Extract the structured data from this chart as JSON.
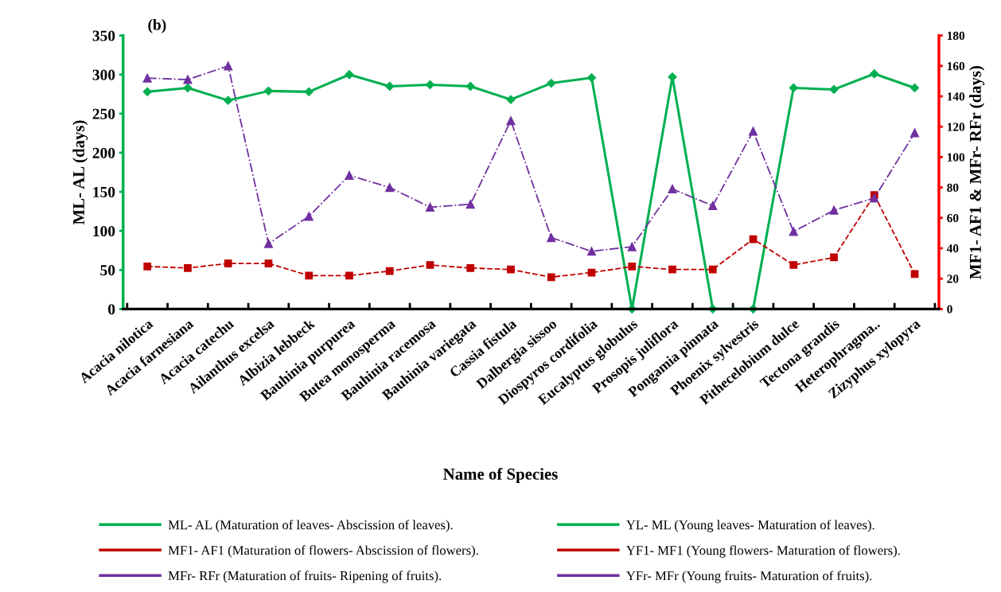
{
  "chart_data": {
    "type": "line",
    "title": "(b)",
    "xlabel": "Name of Species",
    "ylabel": "ML- AL (days)",
    "y2label": "MF1- AF1 & MFr- RFr (days)",
    "categories": [
      "Acacia nilotica",
      "Acacia farnesiana",
      "Acacia catechu",
      "Ailanthus excelsa",
      "Albizia lebbeck",
      "Bauhinia purpurea",
      "Butea monosperma",
      "Bauhinia racemosa",
      "Bauhinia variegata",
      "Cassia fistula",
      "Dalbergia sissoo",
      "Diospyros cordifolia",
      "Eucalyptus globulus",
      "Prosopis juliflora",
      "Pongamia pinnata",
      "Phoenix sylvestris",
      "Pithecelobium dulce",
      "Tectona grandis",
      "Heterophragma..",
      "Zizyphus xylopyra"
    ],
    "series": [
      {
        "name": "ML- AL (Maturation of leaves- Abscission of leaves).",
        "color": "#00b050",
        "marker": "diamond",
        "line_style": "solid",
        "values": [
          278,
          283,
          267,
          279,
          278,
          300,
          285,
          287,
          285,
          268,
          289,
          296,
          0,
          297,
          0,
          0,
          283,
          281,
          301,
          283
        ]
      },
      {
        "name": "MF1- AF1 (Maturation of flowers- Abscission of flowers).",
        "color": "#c00000",
        "marker": "square",
        "line_style": "dashed",
        "axis": "y2",
        "values": [
          28,
          27,
          30,
          30,
          22,
          22,
          25,
          29,
          27,
          26,
          21,
          24,
          28,
          26,
          26,
          46,
          29,
          34,
          75,
          23
        ]
      },
      {
        "name": "MFr- RFr (Maturation of fruits- Ripening of fruits).",
        "color": "#7030a0",
        "marker": "triangle",
        "line_style": "dashdot",
        "axis": "y2",
        "values": [
          152,
          151,
          160,
          43,
          61,
          88,
          80,
          67,
          69,
          124,
          47,
          38,
          41,
          79,
          68,
          117,
          51,
          65,
          73,
          116
        ]
      },
      {
        "name": "YL- ML (Young leaves- Maturation of leaves).",
        "color": "#00b050",
        "values": [
          null,
          null,
          null,
          null,
          null,
          null,
          null,
          null,
          null,
          null,
          null,
          null,
          null,
          null,
          null,
          null,
          null,
          null,
          null,
          null
        ]
      },
      {
        "name": "YF1- MF1 (Young flowers- Maturation of flowers).",
        "color": "#c00000",
        "values": [
          null,
          null,
          null,
          null,
          null,
          null,
          null,
          null,
          null,
          null,
          null,
          null,
          null,
          null,
          null,
          null,
          null,
          null,
          null,
          null
        ]
      },
      {
        "name": "YFr- MFr (Young fruits- Maturation of fruits).",
        "color": "#7030a0",
        "values": [
          null,
          null,
          null,
          null,
          null,
          null,
          null,
          null,
          null,
          null,
          null,
          null,
          null,
          null,
          null,
          null,
          null,
          null,
          null,
          null
        ]
      }
    ],
    "ylim": [
      0,
      350
    ],
    "yticks": [
      0,
      50,
      100,
      150,
      200,
      250,
      300,
      350
    ],
    "y2lim": [
      0,
      180
    ],
    "y2ticks": [
      0,
      20,
      40,
      60,
      80,
      100,
      120,
      140,
      160,
      180
    ],
    "grid": false,
    "legend": "bottom"
  }
}
